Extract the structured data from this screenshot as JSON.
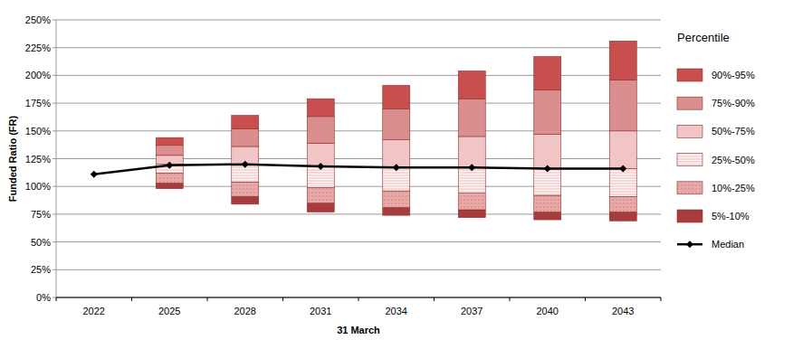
{
  "chart_data": {
    "type": "bar",
    "stacked": true,
    "y_label": "Funded Ratio (FR)",
    "x_label": "31 March",
    "legend_title": "Percentile",
    "legend": "right",
    "grid": true,
    "categories": [
      "2022",
      "2025",
      "2028",
      "2031",
      "2034",
      "2037",
      "2040",
      "2043"
    ],
    "base": [
      null,
      98,
      84,
      77,
      74,
      72,
      70,
      69
    ],
    "series": [
      {
        "name": "5%-10%",
        "color": "#a83c3c",
        "values": [
          null,
          5,
          7,
          8,
          7,
          7,
          7,
          8
        ]
      },
      {
        "name": "10%-25%",
        "color": "#e9a9a9",
        "values": [
          null,
          9,
          13,
          14,
          15,
          15,
          15,
          14
        ]
      },
      {
        "name": "25%-50%",
        "color": "#f6d6d6",
        "values": [
          null,
          8,
          16,
          19,
          21,
          23,
          24,
          25
        ]
      },
      {
        "name": "50%-75%",
        "color": "#f1c5c5",
        "values": [
          null,
          8,
          16,
          21,
          25,
          28,
          31,
          34
        ]
      },
      {
        "name": "75%-90%",
        "color": "#da8e8e",
        "values": [
          null,
          9,
          16,
          24,
          28,
          34,
          40,
          46
        ]
      },
      {
        "name": "90%-95%",
        "color": "#c94f4f",
        "values": [
          null,
          7,
          12,
          16,
          21,
          25,
          30,
          35
        ]
      },
      {
        "name": "Median",
        "type": "line",
        "color": "#000000",
        "marker": "diamond",
        "values": [
          111,
          119,
          120,
          118,
          117,
          117,
          116,
          116
        ]
      }
    ],
    "ylim": [
      0,
      250
    ],
    "yticks": [
      {
        "value": 0,
        "label": "0%"
      },
      {
        "value": 25,
        "label": "25%"
      },
      {
        "value": 50,
        "label": "50%"
      },
      {
        "value": 75,
        "label": "75%"
      },
      {
        "value": 100,
        "label": "100%"
      },
      {
        "value": 125,
        "label": "125%"
      },
      {
        "value": 150,
        "label": "150%"
      },
      {
        "value": 175,
        "label": "175%"
      },
      {
        "value": 200,
        "label": "200%"
      },
      {
        "value": 225,
        "label": "225%"
      },
      {
        "value": 250,
        "label": "250%"
      }
    ]
  }
}
